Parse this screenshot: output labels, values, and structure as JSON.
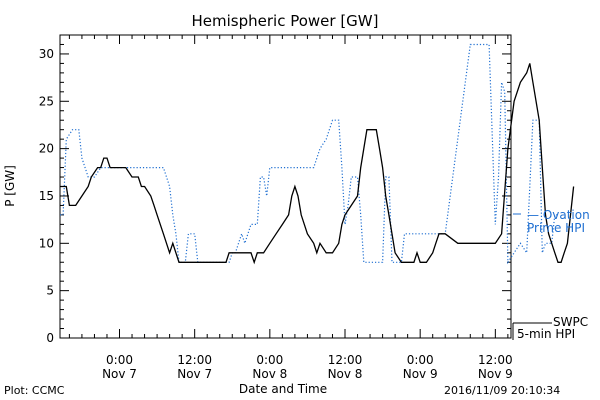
{
  "chart_data": {
    "type": "line",
    "title": "Hemispheric Power [GW]",
    "xlabel": "Date and Time",
    "ylabel": "P [GW]",
    "ylim": [
      0,
      32
    ],
    "y_ticks": [
      0,
      5,
      10,
      15,
      20,
      25,
      30
    ],
    "x_range_hours": [
      -9.5,
      62.5
    ],
    "x_ticks": [
      {
        "h": 0,
        "time": "0:00",
        "date": "Nov 7"
      },
      {
        "h": 12,
        "time": "12:00",
        "date": "Nov 7"
      },
      {
        "h": 24,
        "time": "0:00",
        "date": "Nov 8"
      },
      {
        "h": 36,
        "time": "12:00",
        "date": "Nov 8"
      },
      {
        "h": 48,
        "time": "0:00",
        "date": "Nov 9"
      },
      {
        "h": 60,
        "time": "12:00",
        "date": "Nov 9"
      }
    ],
    "grid": false,
    "series": [
      {
        "name": "Ovation Prime HPI",
        "label_lines": [
          "— Ovation",
          "Prime HPI"
        ],
        "color": "#1f6fd1",
        "style": "dotted",
        "points": [
          [
            -9.5,
            13
          ],
          [
            -9,
            13
          ],
          [
            -8.5,
            21
          ],
          [
            -7.5,
            22
          ],
          [
            -6.5,
            22
          ],
          [
            -6,
            19
          ],
          [
            -5,
            17
          ],
          [
            -4,
            17
          ],
          [
            -3,
            18
          ],
          [
            -1,
            18
          ],
          [
            2,
            18
          ],
          [
            5,
            18
          ],
          [
            7,
            18
          ],
          [
            7.5,
            17
          ],
          [
            8,
            16
          ],
          [
            8.5,
            13
          ],
          [
            9,
            11
          ],
          [
            9.5,
            8
          ],
          [
            10.5,
            8
          ],
          [
            11,
            11
          ],
          [
            12,
            11
          ],
          [
            12.5,
            8
          ],
          [
            14,
            8
          ],
          [
            17,
            8
          ],
          [
            17.5,
            8
          ],
          [
            18,
            9
          ],
          [
            18.5,
            9
          ],
          [
            19,
            10
          ],
          [
            19.5,
            11
          ],
          [
            20,
            10
          ],
          [
            20.5,
            11
          ],
          [
            21,
            12
          ],
          [
            22,
            12
          ],
          [
            22.5,
            17
          ],
          [
            23,
            17
          ],
          [
            23.5,
            15
          ],
          [
            24,
            18
          ],
          [
            25,
            18
          ],
          [
            26,
            18
          ],
          [
            29,
            18
          ],
          [
            31,
            18
          ],
          [
            32,
            20
          ],
          [
            33,
            21
          ],
          [
            34,
            23
          ],
          [
            35,
            23
          ],
          [
            35.5,
            18
          ],
          [
            36,
            12
          ],
          [
            36.5,
            14
          ],
          [
            37,
            17
          ],
          [
            38,
            17
          ],
          [
            38.5,
            13
          ],
          [
            39,
            8
          ],
          [
            40,
            8
          ],
          [
            41,
            8
          ],
          [
            42,
            8
          ],
          [
            42.5,
            17
          ],
          [
            43,
            17
          ],
          [
            43.5,
            8
          ],
          [
            44,
            8
          ],
          [
            45,
            8
          ],
          [
            45.5,
            11
          ],
          [
            47,
            11
          ],
          [
            50,
            11
          ],
          [
            51,
            11
          ],
          [
            52,
            11
          ],
          [
            56,
            31
          ],
          [
            58,
            31
          ],
          [
            59,
            31
          ],
          [
            60,
            12
          ],
          [
            60.5,
            17
          ],
          [
            61,
            27
          ],
          [
            61.5,
            26
          ],
          [
            62,
            8
          ],
          [
            63,
            9
          ],
          [
            64,
            10
          ],
          [
            65,
            9
          ],
          [
            66,
            23
          ],
          [
            67,
            23
          ],
          [
            67.5,
            9
          ],
          [
            68,
            10
          ],
          [
            69,
            10
          ],
          [
            69.5,
            13
          ],
          [
            70,
            13
          ]
        ]
      },
      {
        "name": "SWPC 5-min HPI",
        "label_lines": [
          "SWPC",
          "5-min HPI"
        ],
        "color": "#000000",
        "style": "solid",
        "points": [
          [
            -9.5,
            16
          ],
          [
            -8.5,
            16
          ],
          [
            -8,
            14
          ],
          [
            -7,
            14
          ],
          [
            -6,
            15
          ],
          [
            -5,
            16
          ],
          [
            -4.5,
            17
          ],
          [
            -3.5,
            18
          ],
          [
            -3,
            18
          ],
          [
            -2.5,
            19
          ],
          [
            -2,
            19
          ],
          [
            -1.5,
            18
          ],
          [
            0,
            18
          ],
          [
            1,
            18
          ],
          [
            2,
            17
          ],
          [
            3,
            17
          ],
          [
            3.5,
            16
          ],
          [
            4,
            16
          ],
          [
            5,
            15
          ],
          [
            5.5,
            14
          ],
          [
            6,
            13
          ],
          [
            7,
            11
          ],
          [
            8,
            9
          ],
          [
            8.5,
            10
          ],
          [
            9,
            9
          ],
          [
            9.5,
            8
          ],
          [
            10,
            8
          ],
          [
            11,
            8
          ],
          [
            12,
            8
          ],
          [
            14,
            8
          ],
          [
            16,
            8
          ],
          [
            17,
            8
          ],
          [
            17.5,
            9
          ],
          [
            18,
            9
          ],
          [
            20,
            9
          ],
          [
            21,
            9
          ],
          [
            21.5,
            8
          ],
          [
            22,
            9
          ],
          [
            23,
            9
          ],
          [
            24,
            10
          ],
          [
            25,
            11
          ],
          [
            26,
            12
          ],
          [
            27,
            13
          ],
          [
            27.5,
            15
          ],
          [
            28,
            16
          ],
          [
            28.5,
            15
          ],
          [
            29,
            13
          ],
          [
            30,
            11
          ],
          [
            31,
            10
          ],
          [
            31.5,
            9
          ],
          [
            32,
            10
          ],
          [
            33,
            9
          ],
          [
            34,
            9
          ],
          [
            35,
            10
          ],
          [
            35.5,
            12
          ],
          [
            36,
            13
          ],
          [
            37,
            14
          ],
          [
            38,
            15
          ],
          [
            38.5,
            18
          ],
          [
            39,
            20
          ],
          [
            39.5,
            22
          ],
          [
            40,
            22
          ],
          [
            41,
            22
          ],
          [
            41.5,
            20
          ],
          [
            42,
            18
          ],
          [
            42.5,
            15
          ],
          [
            43,
            13
          ],
          [
            43.5,
            11
          ],
          [
            44,
            9
          ],
          [
            45,
            8
          ],
          [
            46,
            8
          ],
          [
            47,
            8
          ],
          [
            47.5,
            9
          ],
          [
            48,
            8
          ],
          [
            49,
            8
          ],
          [
            50,
            9
          ],
          [
            50.5,
            10
          ],
          [
            51,
            11
          ],
          [
            52,
            11
          ],
          [
            54,
            10
          ],
          [
            56,
            10
          ],
          [
            58,
            10
          ],
          [
            60,
            10
          ],
          [
            61,
            11
          ],
          [
            62,
            20
          ],
          [
            63,
            25
          ],
          [
            64,
            27
          ],
          [
            65,
            28
          ],
          [
            65.5,
            29
          ],
          [
            66,
            27
          ],
          [
            67,
            23
          ],
          [
            67.5,
            18
          ],
          [
            68,
            13
          ],
          [
            68.5,
            11
          ],
          [
            69,
            10
          ],
          [
            69.5,
            9
          ],
          [
            70,
            8
          ],
          [
            70.5,
            8
          ],
          [
            71,
            9
          ],
          [
            71.5,
            10
          ],
          [
            72,
            13
          ],
          [
            72.5,
            16
          ]
        ]
      }
    ]
  },
  "footer": {
    "plot_credit": "Plot: CCMC",
    "timestamp": "2016/11/09 20:10:34"
  }
}
